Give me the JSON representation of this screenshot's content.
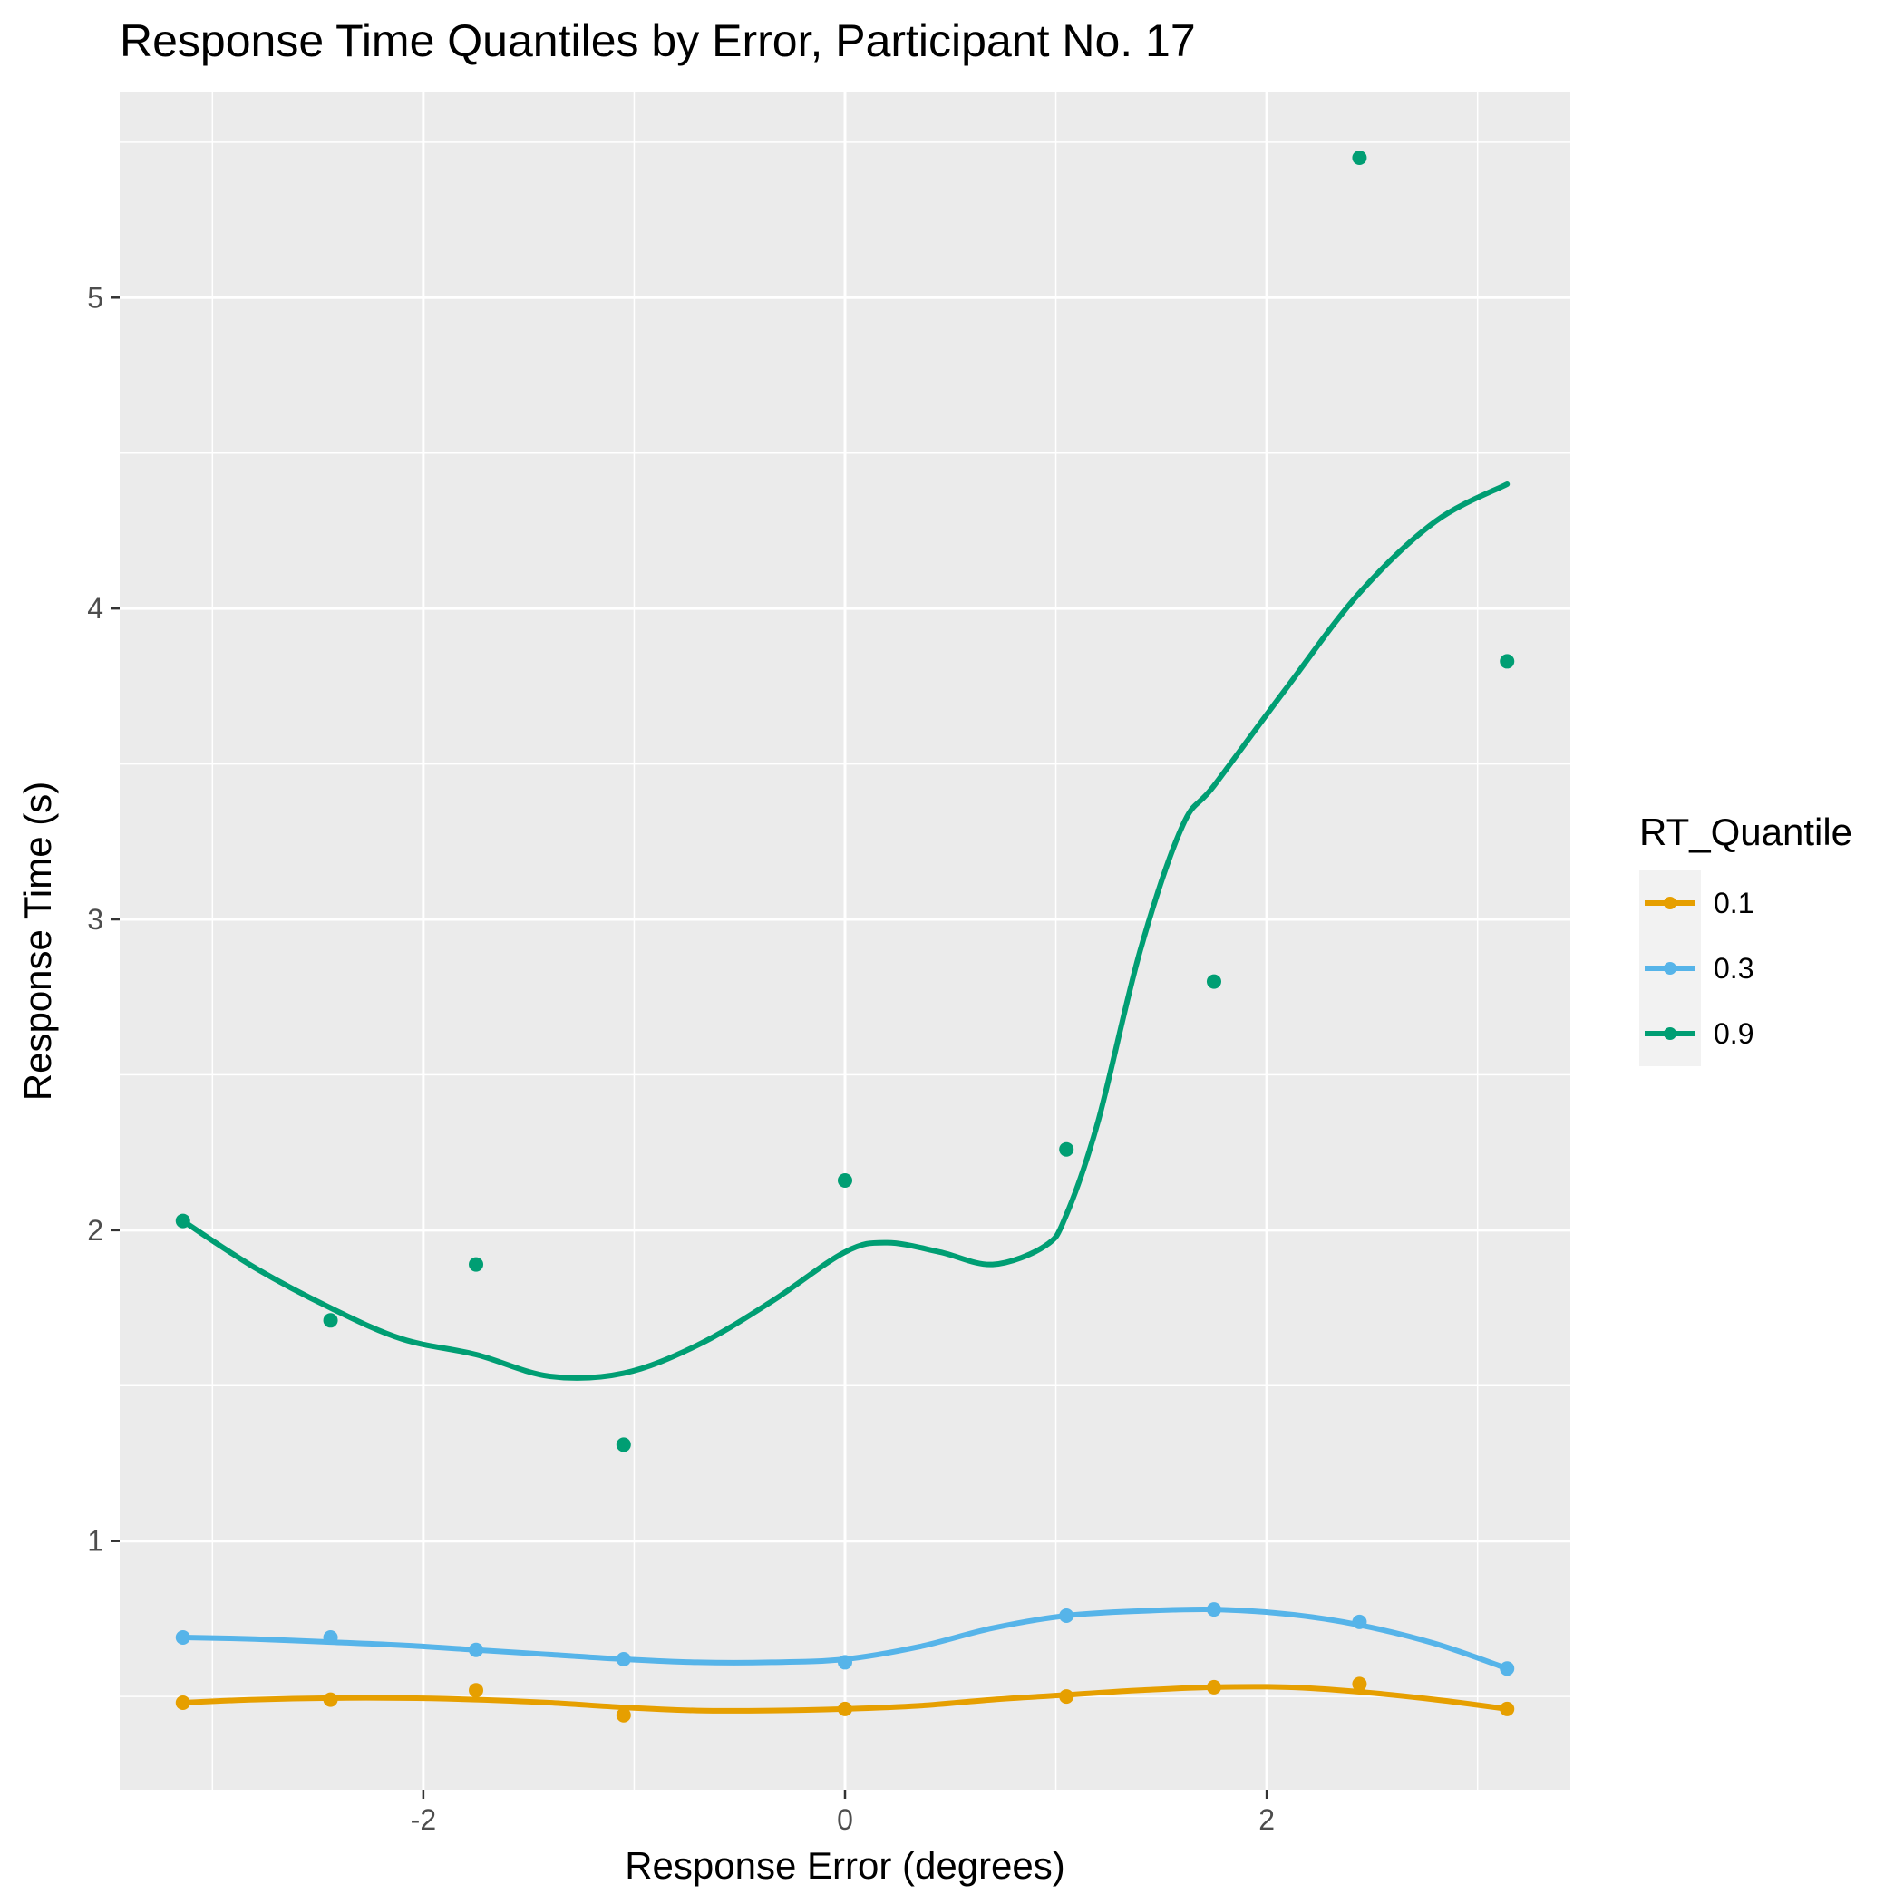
{
  "chart_data": {
    "type": "scatter",
    "title": "Response Time Quantiles by Error, Participant No.  17",
    "xlabel": "Response Error (degrees)",
    "ylabel": "Response Time (s)",
    "xlim": [
      -3.44,
      3.44
    ],
    "ylim": [
      0.2,
      5.66
    ],
    "x_ticks": [
      -2,
      0,
      2
    ],
    "x_tick_labels": [
      "-2",
      "0",
      "2"
    ],
    "y_ticks": [
      1,
      2,
      3,
      4,
      5
    ],
    "y_tick_labels": [
      "1",
      "2",
      "3",
      "4",
      "5"
    ],
    "x_minor_gridlines": [
      -3,
      -1,
      1,
      3
    ],
    "y_minor_gridlines": [
      0.5,
      1.5,
      2.5,
      3.5,
      4.5,
      5.5
    ],
    "grid": true,
    "legend": {
      "title": "RT_Quantile",
      "position": "right"
    },
    "series": [
      {
        "name": "0.1",
        "color": "#E69F00",
        "points": {
          "x": [
            -3.14,
            -2.44,
            -1.75,
            -1.05,
            0.0,
            1.05,
            1.75,
            2.44,
            3.14
          ],
          "y": [
            0.48,
            0.49,
            0.52,
            0.44,
            0.46,
            0.5,
            0.53,
            0.54,
            0.46
          ]
        },
        "smooth": {
          "x": [
            -3.14,
            -2.8,
            -2.44,
            -2.1,
            -1.75,
            -1.4,
            -1.05,
            -0.7,
            -0.35,
            0.0,
            0.35,
            0.7,
            1.05,
            1.4,
            1.75,
            2.1,
            2.44,
            2.8,
            3.14
          ],
          "y": [
            0.48,
            0.49,
            0.495,
            0.495,
            0.49,
            0.48,
            0.465,
            0.455,
            0.455,
            0.46,
            0.47,
            0.49,
            0.505,
            0.52,
            0.53,
            0.53,
            0.515,
            0.49,
            0.46
          ]
        }
      },
      {
        "name": "0.3",
        "color": "#56B4E9",
        "points": {
          "x": [
            -3.14,
            -2.44,
            -1.75,
            -1.05,
            0.0,
            1.05,
            1.75,
            2.44,
            3.14
          ],
          "y": [
            0.69,
            0.69,
            0.65,
            0.62,
            0.61,
            0.76,
            0.78,
            0.74,
            0.59
          ]
        },
        "smooth": {
          "x": [
            -3.14,
            -2.8,
            -2.44,
            -2.1,
            -1.75,
            -1.4,
            -1.05,
            -0.7,
            -0.35,
            0.0,
            0.35,
            0.7,
            1.05,
            1.4,
            1.75,
            2.1,
            2.44,
            2.8,
            3.14
          ],
          "y": [
            0.69,
            0.685,
            0.675,
            0.665,
            0.65,
            0.635,
            0.62,
            0.61,
            0.61,
            0.62,
            0.66,
            0.72,
            0.76,
            0.775,
            0.78,
            0.765,
            0.73,
            0.67,
            0.59
          ]
        }
      },
      {
        "name": "0.9",
        "color": "#009E73",
        "points": {
          "x": [
            -3.14,
            -2.44,
            -1.75,
            -1.05,
            0.0,
            1.05,
            1.75,
            2.44,
            3.14
          ],
          "y": [
            2.03,
            1.71,
            1.89,
            1.31,
            2.16,
            2.26,
            2.8,
            5.45,
            3.83
          ]
        },
        "smooth": {
          "x": [
            -3.14,
            -2.8,
            -2.44,
            -2.1,
            -1.75,
            -1.4,
            -1.05,
            -0.7,
            -0.35,
            0.0,
            0.2,
            0.45,
            0.7,
            0.95,
            1.05,
            1.2,
            1.4,
            1.6,
            1.75,
            2.1,
            2.44,
            2.8,
            3.14
          ],
          "y": [
            2.03,
            1.88,
            1.75,
            1.65,
            1.6,
            1.53,
            1.54,
            1.63,
            1.77,
            1.93,
            1.96,
            1.93,
            1.89,
            1.95,
            2.05,
            2.35,
            2.9,
            3.3,
            3.43,
            3.75,
            4.05,
            4.28,
            4.4
          ]
        }
      }
    ]
  }
}
